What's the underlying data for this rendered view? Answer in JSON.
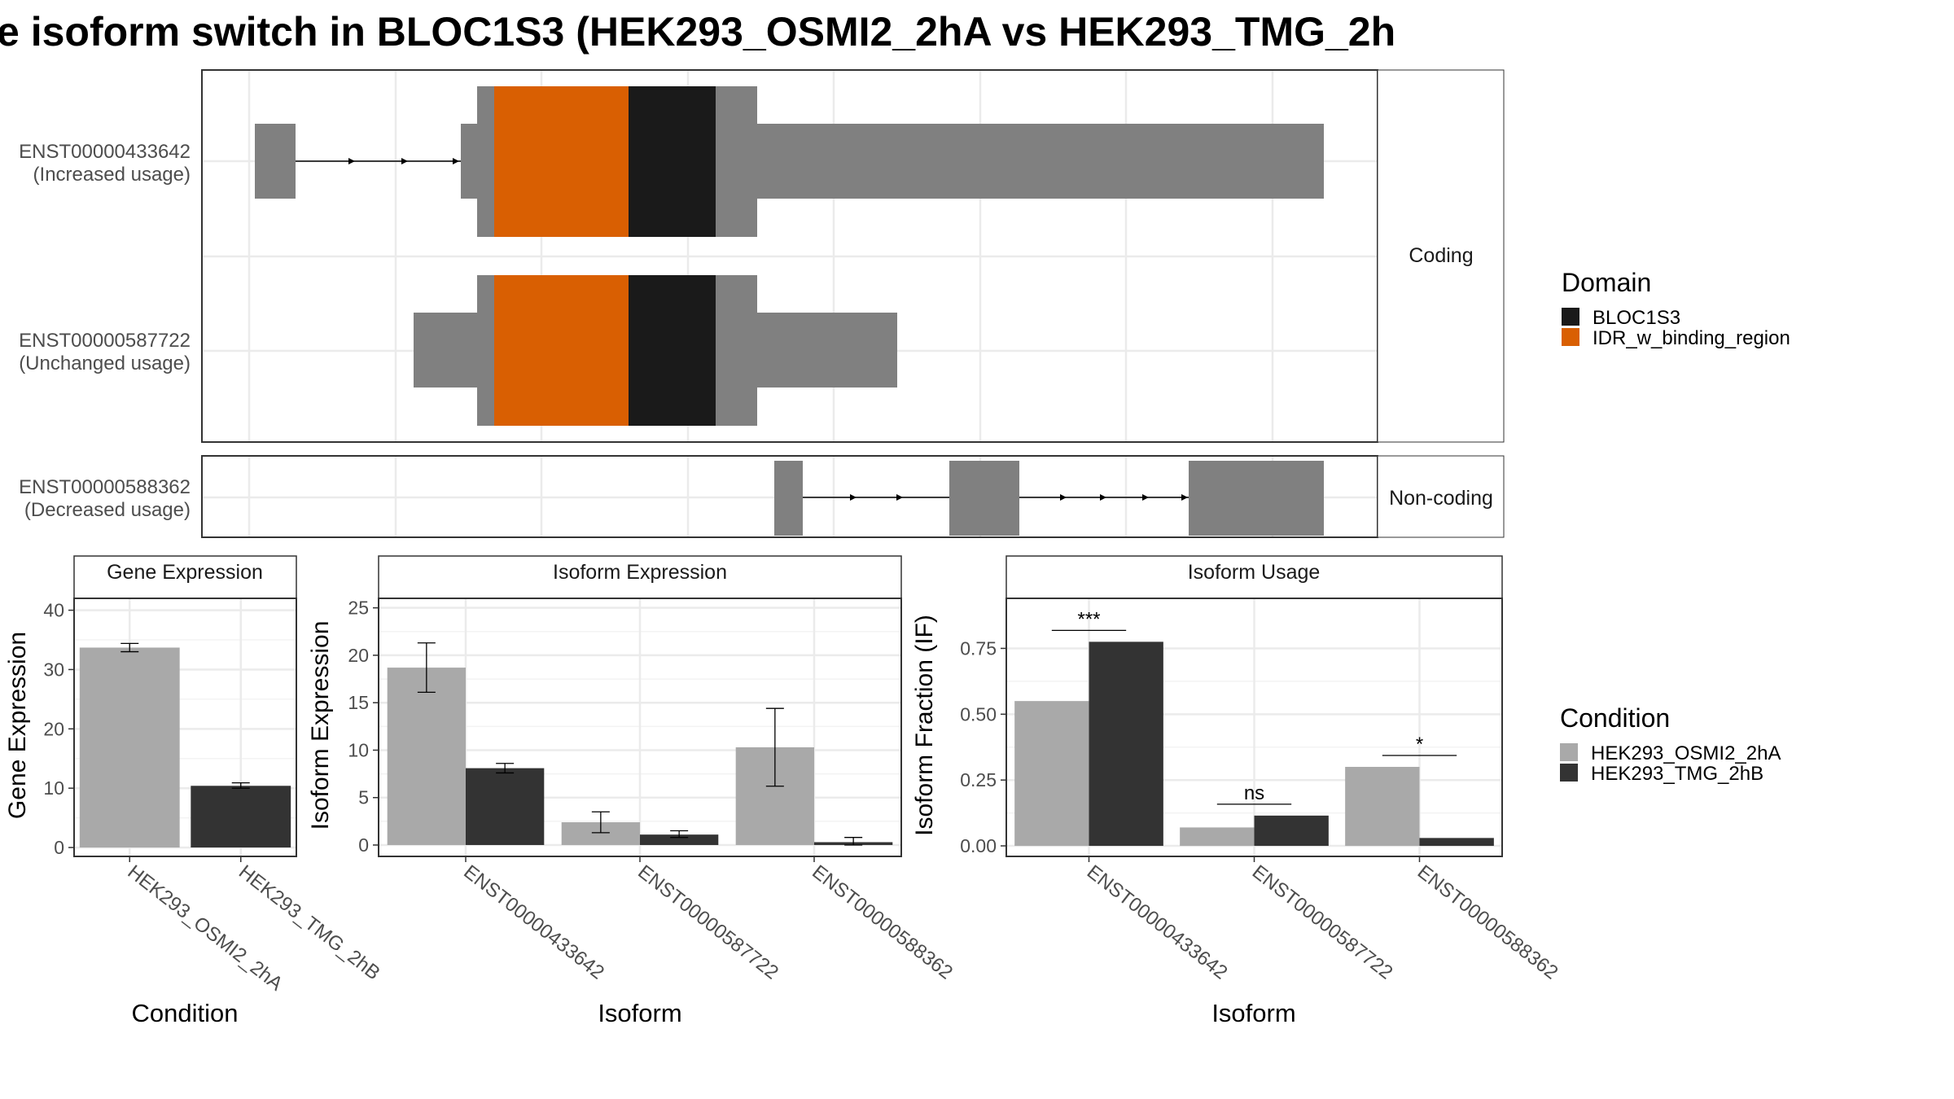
{
  "title": "e isoform switch in BLOC1S3 (HEK293_OSMI2_2hA vs HEK293_TMG_2h",
  "colors": {
    "exon": "#808080",
    "BLOC1S3": "#1a1a1a",
    "IDR_w_binding_region": "#d95f02",
    "condition_a": "#a9a9a9",
    "condition_b": "#333333",
    "grid": "#ebebeb",
    "strip": "#ffffff"
  },
  "structure": {
    "facets": [
      "Coding",
      "Non-coding"
    ],
    "transcripts": [
      {
        "id": "ENST00000433642",
        "usage": "(Increased usage)",
        "facet": "Coding"
      },
      {
        "id": "ENST00000587722",
        "usage": "(Unchanged usage)",
        "facet": "Coding"
      },
      {
        "id": "ENST00000588362",
        "usage": "(Decreased usage)",
        "facet": "Non-coding"
      }
    ]
  },
  "domain_legend": {
    "title": "Domain",
    "items": [
      {
        "label": "BLOC1S3",
        "color": "#1a1a1a"
      },
      {
        "label": "IDR_w_binding_region",
        "color": "#d95f02"
      }
    ]
  },
  "condition_legend": {
    "title": "Condition",
    "items": [
      {
        "label": "HEK293_OSMI2_2hA",
        "color": "#a9a9a9"
      },
      {
        "label": "HEK293_TMG_2hB",
        "color": "#333333"
      }
    ]
  },
  "chart_data": [
    {
      "type": "bar",
      "title": "Gene Expression",
      "xlabel": "Condition",
      "ylabel": "Gene Expression",
      "categories": [
        "HEK293_OSMI2_2hA",
        "HEK293_TMG_2hB"
      ],
      "values": [
        33.7,
        10.4
      ],
      "error_low": [
        33.0,
        10.0
      ],
      "error_high": [
        34.4,
        10.9
      ],
      "ylim": [
        -1.5,
        42
      ],
      "yticks": [
        0,
        10,
        20,
        30,
        40
      ]
    },
    {
      "type": "bar",
      "title": "Isoform Expression",
      "xlabel": "Isoform",
      "ylabel": "Isoform Expression",
      "categories": [
        "ENST00000433642",
        "ENST00000587722",
        "ENST00000588362"
      ],
      "series": [
        {
          "name": "HEK293_OSMI2_2hA",
          "values": [
            18.7,
            2.4,
            10.3
          ],
          "error_low": [
            16.1,
            1.3,
            6.2
          ],
          "error_high": [
            21.3,
            3.5,
            14.4
          ]
        },
        {
          "name": "HEK293_TMG_2hB",
          "values": [
            8.1,
            1.1,
            0.3
          ],
          "error_low": [
            7.6,
            0.8,
            0.0
          ],
          "error_high": [
            8.6,
            1.5,
            0.8
          ]
        }
      ],
      "ylim": [
        -1.2,
        26
      ],
      "yticks": [
        0,
        5,
        10,
        15,
        20,
        25
      ]
    },
    {
      "type": "bar",
      "title": "Isoform Usage",
      "xlabel": "Isoform",
      "ylabel": "Isoform Fraction (IF)",
      "categories": [
        "ENST00000433642",
        "ENST00000587722",
        "ENST00000588362"
      ],
      "series": [
        {
          "name": "HEK293_OSMI2_2hA",
          "values": [
            0.55,
            0.07,
            0.3
          ]
        },
        {
          "name": "HEK293_TMG_2hB",
          "values": [
            0.775,
            0.115,
            0.03
          ]
        }
      ],
      "significance": [
        "***",
        "ns",
        "*"
      ],
      "ylim": [
        -0.04,
        0.94
      ],
      "yticks": [
        0.0,
        0.25,
        0.5,
        0.75
      ],
      "ytick_labels": [
        "0.00",
        "0.25",
        "0.50",
        "0.75"
      ]
    }
  ]
}
